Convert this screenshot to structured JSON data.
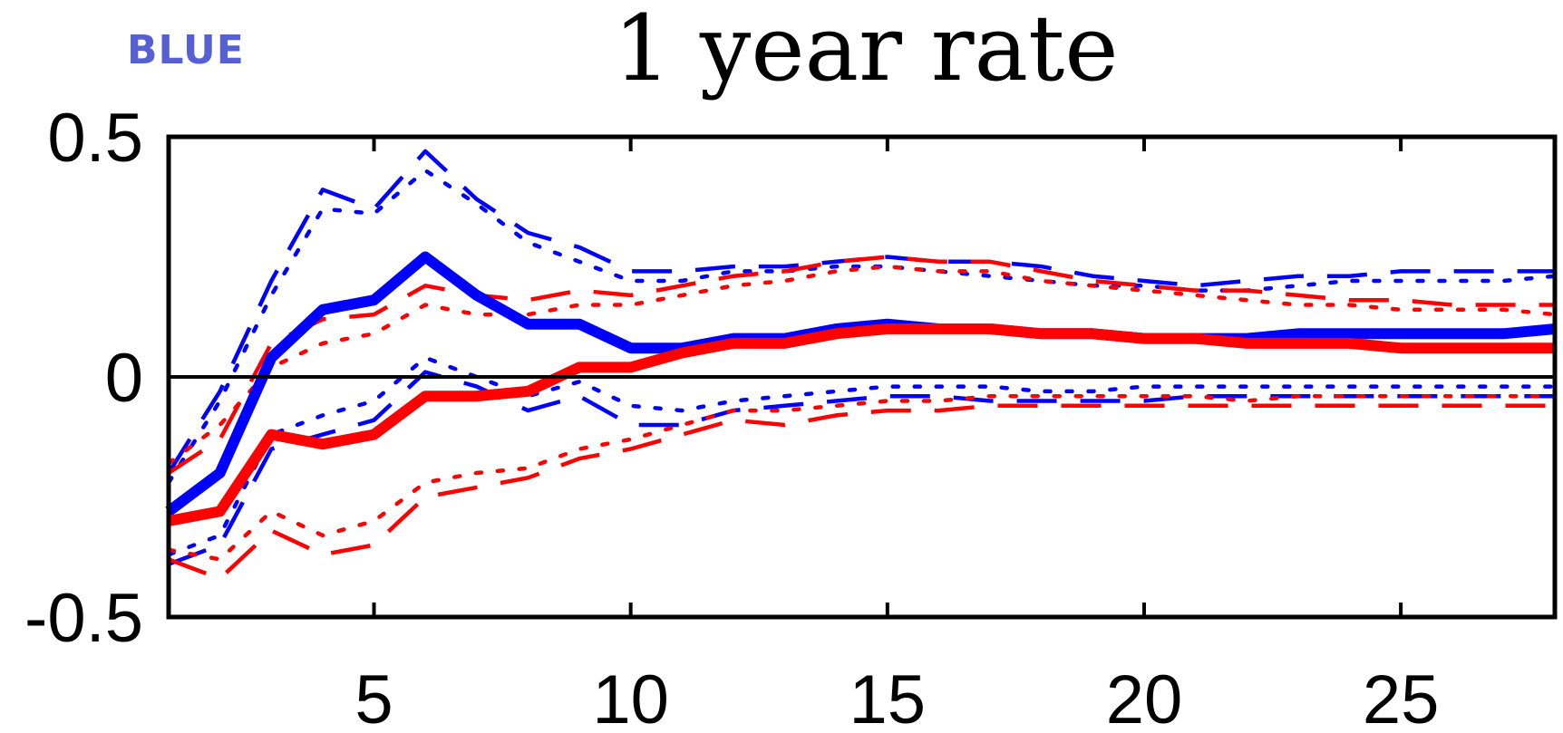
{
  "corner_label": {
    "text": "BLUE",
    "color": "#5561d2"
  },
  "chart_data": {
    "type": "line",
    "title": "1 year rate",
    "xlabel": "",
    "ylabel": "",
    "xlim": [
      1,
      28
    ],
    "ylim": [
      -0.5,
      0.5
    ],
    "x_ticks": [
      5,
      10,
      15,
      20,
      25
    ],
    "y_ticks": [
      -0.5,
      0,
      0.5
    ],
    "y_tick_labels": [
      "-0.5",
      "0",
      "0.5"
    ],
    "zero_line": true,
    "grid": false,
    "x": [
      1,
      2,
      3,
      4,
      5,
      6,
      7,
      8,
      9,
      10,
      11,
      12,
      13,
      14,
      15,
      16,
      17,
      18,
      19,
      20,
      21,
      22,
      23,
      24,
      25,
      26,
      27,
      28
    ],
    "series": [
      {
        "color": "#0000ff",
        "style": "solid-thick",
        "values": [
          -0.28,
          -0.2,
          0.04,
          0.14,
          0.16,
          0.25,
          0.17,
          0.11,
          0.11,
          0.06,
          0.06,
          0.08,
          0.08,
          0.1,
          0.11,
          0.1,
          0.1,
          0.09,
          0.09,
          0.08,
          0.08,
          0.08,
          0.09,
          0.09,
          0.09,
          0.09,
          0.09,
          0.1
        ]
      },
      {
        "color": "#ff0000",
        "style": "solid-thick",
        "values": [
          -0.3,
          -0.28,
          -0.12,
          -0.14,
          -0.12,
          -0.04,
          -0.04,
          -0.03,
          0.02,
          0.02,
          0.05,
          0.07,
          0.07,
          0.09,
          0.1,
          0.1,
          0.1,
          0.09,
          0.09,
          0.08,
          0.08,
          0.07,
          0.07,
          0.07,
          0.06,
          0.06,
          0.06,
          0.06
        ]
      },
      {
        "color": "#0000ff",
        "style": "dashed",
        "values": [
          -0.2,
          -0.03,
          0.2,
          0.39,
          0.35,
          0.47,
          0.37,
          0.3,
          0.27,
          0.22,
          0.22,
          0.23,
          0.23,
          0.24,
          0.25,
          0.24,
          0.24,
          0.23,
          0.21,
          0.2,
          0.19,
          0.2,
          0.21,
          0.21,
          0.22,
          0.22,
          0.22,
          0.22
        ]
      },
      {
        "color": "#0000ff",
        "style": "dotted",
        "values": [
          -0.22,
          -0.05,
          0.17,
          0.35,
          0.34,
          0.43,
          0.36,
          0.28,
          0.24,
          0.2,
          0.2,
          0.22,
          0.22,
          0.23,
          0.23,
          0.22,
          0.21,
          0.2,
          0.19,
          0.19,
          0.18,
          0.18,
          0.19,
          0.2,
          0.2,
          0.2,
          0.2,
          0.21
        ]
      },
      {
        "color": "#0000ff",
        "style": "dashed",
        "values": [
          -0.39,
          -0.35,
          -0.15,
          -0.12,
          -0.09,
          0.01,
          -0.02,
          -0.07,
          -0.04,
          -0.1,
          -0.1,
          -0.07,
          -0.06,
          -0.05,
          -0.04,
          -0.04,
          -0.05,
          -0.05,
          -0.05,
          -0.05,
          -0.04,
          -0.04,
          -0.04,
          -0.04,
          -0.04,
          -0.04,
          -0.04,
          -0.04
        ]
      },
      {
        "color": "#0000ff",
        "style": "dotted",
        "values": [
          -0.37,
          -0.33,
          -0.12,
          -0.08,
          -0.05,
          0.04,
          0.0,
          -0.04,
          -0.01,
          -0.06,
          -0.07,
          -0.05,
          -0.04,
          -0.03,
          -0.02,
          -0.02,
          -0.02,
          -0.03,
          -0.03,
          -0.02,
          -0.02,
          -0.02,
          -0.02,
          -0.02,
          -0.02,
          -0.02,
          -0.02,
          -0.02
        ]
      },
      {
        "color": "#ff0000",
        "style": "dashed",
        "values": [
          -0.2,
          -0.13,
          0.07,
          0.12,
          0.13,
          0.19,
          0.17,
          0.16,
          0.18,
          0.17,
          0.19,
          0.21,
          0.22,
          0.24,
          0.25,
          0.24,
          0.24,
          0.22,
          0.2,
          0.19,
          0.18,
          0.18,
          0.17,
          0.16,
          0.16,
          0.15,
          0.15,
          0.15
        ]
      },
      {
        "color": "#ff0000",
        "style": "dotted",
        "values": [
          -0.18,
          -0.1,
          0.02,
          0.07,
          0.09,
          0.15,
          0.13,
          0.13,
          0.15,
          0.15,
          0.17,
          0.19,
          0.2,
          0.22,
          0.23,
          0.22,
          0.22,
          0.2,
          0.19,
          0.18,
          0.17,
          0.16,
          0.15,
          0.15,
          0.14,
          0.14,
          0.14,
          0.13
        ]
      },
      {
        "color": "#ff0000",
        "style": "dashed",
        "values": [
          -0.38,
          -0.42,
          -0.32,
          -0.37,
          -0.35,
          -0.25,
          -0.23,
          -0.21,
          -0.17,
          -0.15,
          -0.12,
          -0.09,
          -0.1,
          -0.08,
          -0.07,
          -0.07,
          -0.06,
          -0.06,
          -0.06,
          -0.06,
          -0.06,
          -0.06,
          -0.06,
          -0.06,
          -0.06,
          -0.06,
          -0.06,
          -0.06
        ]
      },
      {
        "color": "#ff0000",
        "style": "dotted",
        "values": [
          -0.36,
          -0.38,
          -0.28,
          -0.33,
          -0.3,
          -0.22,
          -0.2,
          -0.19,
          -0.15,
          -0.13,
          -0.1,
          -0.07,
          -0.07,
          -0.06,
          -0.05,
          -0.05,
          -0.04,
          -0.04,
          -0.04,
          -0.04,
          -0.04,
          -0.05,
          -0.04,
          -0.04,
          -0.04,
          -0.04,
          -0.04,
          -0.04
        ]
      }
    ]
  }
}
